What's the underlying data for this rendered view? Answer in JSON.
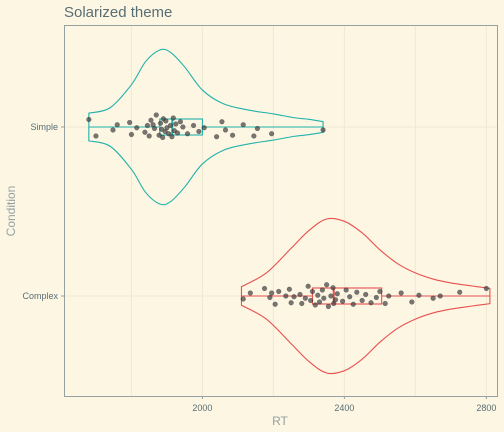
{
  "chart_data": {
    "type": "violin-box-jitter",
    "orientation": "horizontal",
    "title": "Solarized theme",
    "xlabel": "RT",
    "ylabel": "Condition",
    "xlim": [
      1610,
      2830
    ],
    "x_ticks": [
      2000,
      2400,
      2800
    ],
    "categories": [
      "Simple",
      "Complex"
    ],
    "grid": true,
    "series": [
      {
        "name": "Simple",
        "color": "#20B2AA",
        "box": {
          "min": 1680,
          "q1": 1880,
          "median": 1915,
          "q3": 2000,
          "max": 2340
        },
        "violin_profile": [
          [
            1680,
            0.18
          ],
          [
            1740,
            0.25
          ],
          [
            1800,
            0.55
          ],
          [
            1840,
            0.85
          ],
          [
            1880,
            1.0
          ],
          [
            1910,
            0.97
          ],
          [
            1950,
            0.78
          ],
          [
            2000,
            0.48
          ],
          [
            2060,
            0.3
          ],
          [
            2130,
            0.22
          ],
          [
            2200,
            0.17
          ],
          [
            2260,
            0.12
          ],
          [
            2300,
            0.1
          ],
          [
            2340,
            0.07
          ]
        ],
        "points": [
          [
            1680,
            -0.1
          ],
          [
            1700,
            0.12
          ],
          [
            1748,
            0.04
          ],
          [
            1760,
            -0.03
          ],
          [
            1795,
            -0.06
          ],
          [
            1800,
            0.1
          ],
          [
            1815,
            0.01
          ],
          [
            1838,
            0.07
          ],
          [
            1845,
            -0.02
          ],
          [
            1850,
            0.12
          ],
          [
            1855,
            -0.09
          ],
          [
            1861,
            -0.03
          ],
          [
            1865,
            0.02
          ],
          [
            1870,
            -0.16
          ],
          [
            1878,
            0.11
          ],
          [
            1882,
            -0.05
          ],
          [
            1885,
            0.03
          ],
          [
            1888,
            0.14
          ],
          [
            1890,
            -0.11
          ],
          [
            1895,
            0.06
          ],
          [
            1897,
            -0.08
          ],
          [
            1900,
            0.01
          ],
          [
            1905,
            0.09
          ],
          [
            1910,
            -0.02
          ],
          [
            1914,
            0.13
          ],
          [
            1918,
            -0.12
          ],
          [
            1921,
            0.05
          ],
          [
            1925,
            -0.04
          ],
          [
            1930,
            0.08
          ],
          [
            1938,
            -0.07
          ],
          [
            1945,
            0.0
          ],
          [
            1958,
            0.09
          ],
          [
            1975,
            -0.02
          ],
          [
            1990,
            0.06
          ],
          [
            2005,
            0.01
          ],
          [
            2040,
            0.13
          ],
          [
            2055,
            -0.07
          ],
          [
            2065,
            0.04
          ],
          [
            2085,
            0.11
          ],
          [
            2115,
            -0.03
          ],
          [
            2145,
            0.12
          ],
          [
            2155,
            0.02
          ],
          [
            2195,
            0.09
          ],
          [
            2340,
            0.04
          ]
        ]
      },
      {
        "name": "Complex",
        "color": "#E8504F",
        "box": {
          "min": 2110,
          "q1": 2310,
          "median": 2370,
          "q3": 2505,
          "max": 2810
        },
        "violin_profile": [
          [
            2110,
            0.12
          ],
          [
            2180,
            0.3
          ],
          [
            2250,
            0.62
          ],
          [
            2300,
            0.85
          ],
          [
            2350,
            1.0
          ],
          [
            2400,
            0.97
          ],
          [
            2450,
            0.82
          ],
          [
            2500,
            0.6
          ],
          [
            2550,
            0.42
          ],
          [
            2600,
            0.3
          ],
          [
            2650,
            0.22
          ],
          [
            2700,
            0.17
          ],
          [
            2760,
            0.13
          ],
          [
            2810,
            0.1
          ]
        ],
        "points": [
          [
            2115,
            0.04
          ],
          [
            2135,
            -0.04
          ],
          [
            2175,
            -0.1
          ],
          [
            2190,
            0.02
          ],
          [
            2195,
            -0.04
          ],
          [
            2205,
            0.11
          ],
          [
            2215,
            -0.06
          ],
          [
            2235,
            0.0
          ],
          [
            2245,
            -0.09
          ],
          [
            2250,
            0.09
          ],
          [
            2258,
            0.01
          ],
          [
            2275,
            -0.02
          ],
          [
            2280,
            0.1
          ],
          [
            2290,
            0.03
          ],
          [
            2298,
            -0.13
          ],
          [
            2305,
            0.06
          ],
          [
            2310,
            -0.06
          ],
          [
            2318,
            0.12
          ],
          [
            2325,
            -0.01
          ],
          [
            2330,
            0.08
          ],
          [
            2338,
            -0.08
          ],
          [
            2342,
            0.03
          ],
          [
            2350,
            -0.15
          ],
          [
            2355,
            0.14
          ],
          [
            2362,
            0.0
          ],
          [
            2368,
            -0.11
          ],
          [
            2370,
            0.1
          ],
          [
            2375,
            0.05
          ],
          [
            2380,
            -0.03
          ],
          [
            2395,
            0.07
          ],
          [
            2405,
            -0.08
          ],
          [
            2415,
            0.01
          ],
          [
            2425,
            0.11
          ],
          [
            2435,
            -0.05
          ],
          [
            2450,
            0.06
          ],
          [
            2460,
            -0.02
          ],
          [
            2475,
            0.09
          ],
          [
            2490,
            0.02
          ],
          [
            2500,
            -0.06
          ],
          [
            2515,
            0.1
          ],
          [
            2525,
            0.0
          ],
          [
            2560,
            -0.04
          ],
          [
            2590,
            0.08
          ],
          [
            2610,
            -0.01
          ],
          [
            2650,
            0.03
          ],
          [
            2670,
            0.0
          ],
          [
            2725,
            -0.05
          ],
          [
            2800,
            -0.1
          ]
        ]
      }
    ]
  }
}
